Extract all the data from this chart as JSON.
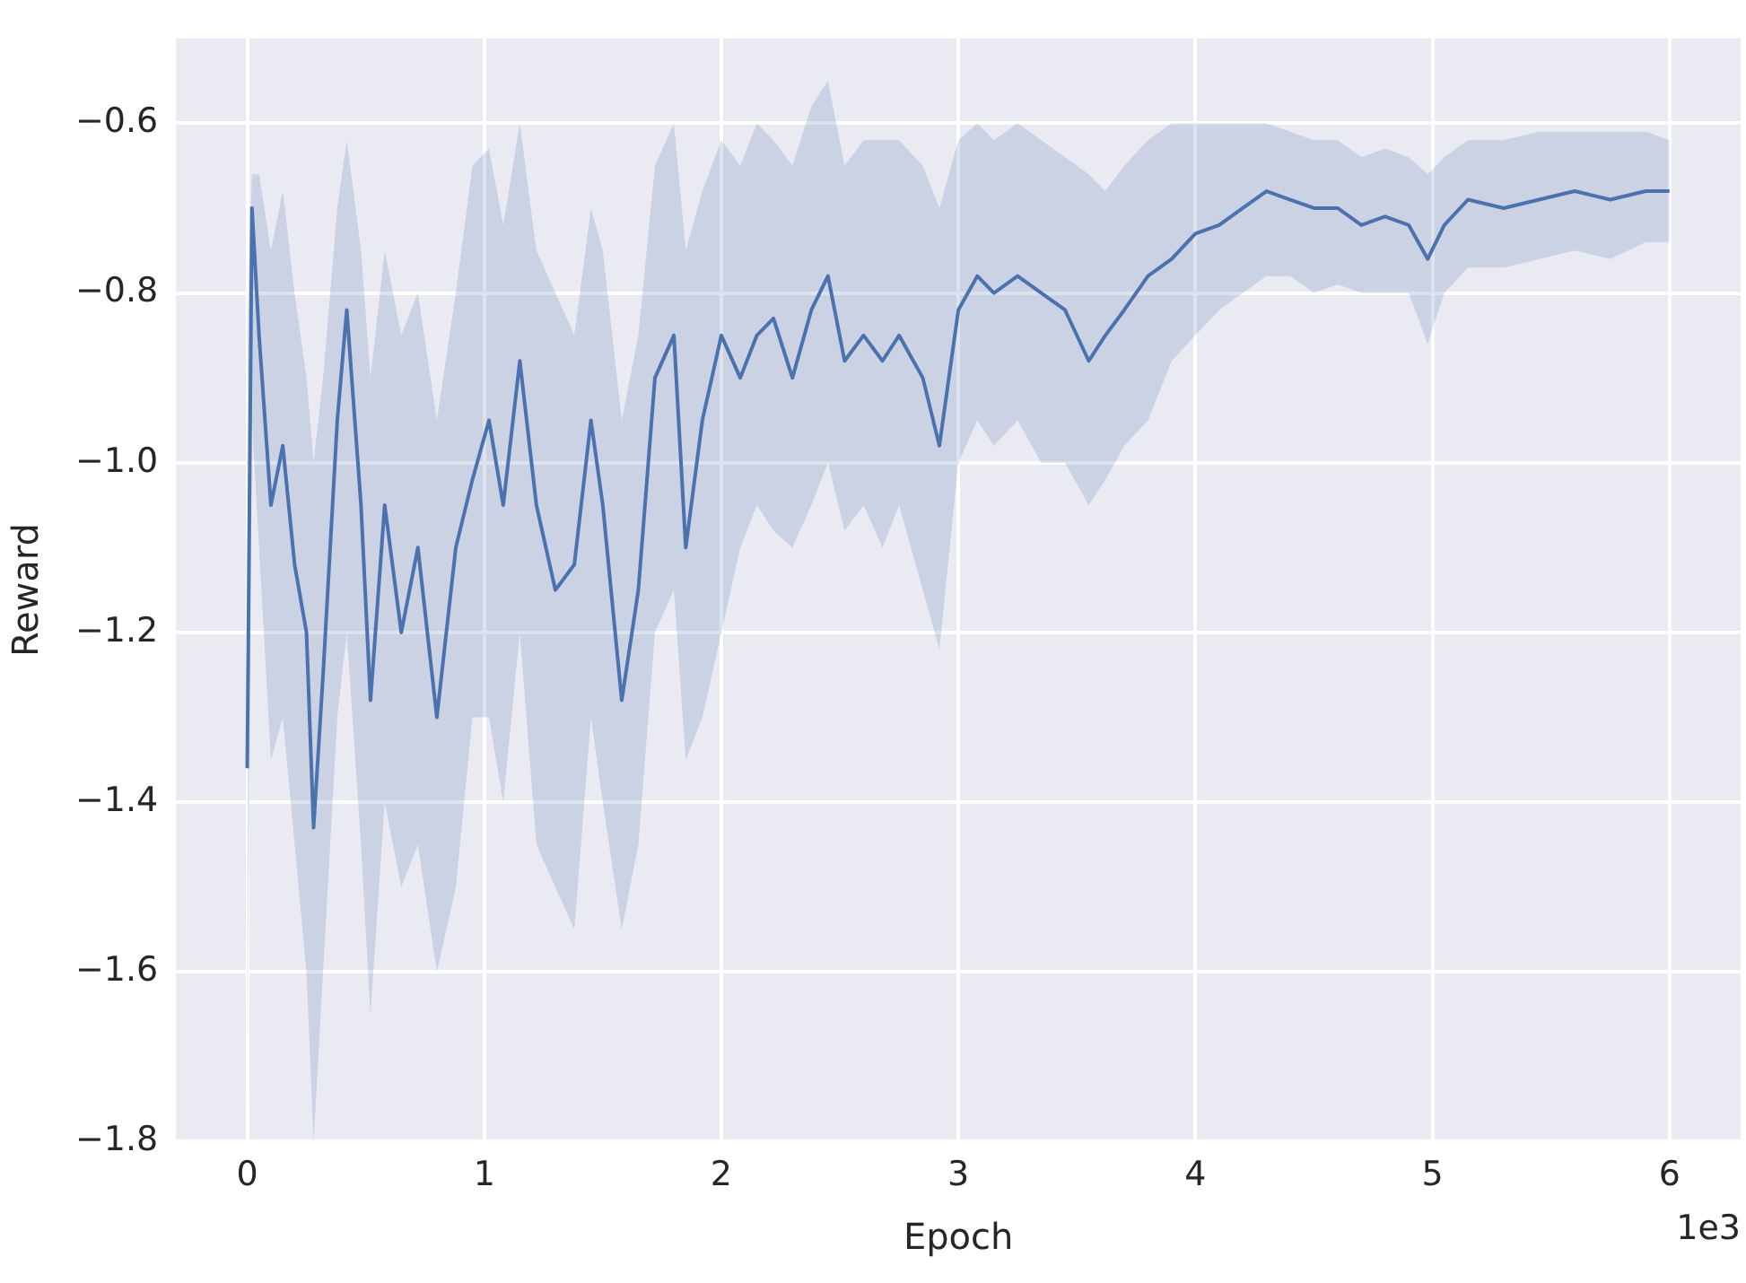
{
  "chart_data": {
    "type": "line",
    "xlabel": "Epoch",
    "ylabel": "Reward",
    "annotations": [
      "1e3"
    ],
    "grid": true,
    "legend": false,
    "marker": "none",
    "line_style": "solid",
    "xlim": [
      -0.3,
      6.3
    ],
    "xticks": [
      0,
      1,
      2,
      3,
      4,
      5,
      6
    ],
    "ylim": [
      -1.8,
      -0.5
    ],
    "yticks": [
      {
        "value": -1.8,
        "label": "−1.8"
      },
      {
        "value": -1.6,
        "label": "−1.6"
      },
      {
        "value": -1.4,
        "label": "−1.4"
      },
      {
        "value": -1.2,
        "label": "−1.2"
      },
      {
        "value": -1.0,
        "label": "−1.0"
      },
      {
        "value": -0.8,
        "label": "−0.8"
      },
      {
        "value": -0.6,
        "label": "−0.6"
      }
    ],
    "x": [
      0,
      0.02,
      0.05,
      0.1,
      0.15,
      0.2,
      0.25,
      0.28,
      0.32,
      0.38,
      0.42,
      0.48,
      0.52,
      0.58,
      0.65,
      0.72,
      0.8,
      0.88,
      0.95,
      1.02,
      1.08,
      1.15,
      1.22,
      1.3,
      1.38,
      1.45,
      1.5,
      1.58,
      1.65,
      1.72,
      1.8,
      1.85,
      1.92,
      2.0,
      2.08,
      2.15,
      2.22,
      2.3,
      2.38,
      2.45,
      2.52,
      2.6,
      2.68,
      2.75,
      2.85,
      2.92,
      3.0,
      3.08,
      3.15,
      3.25,
      3.35,
      3.45,
      3.55,
      3.62,
      3.7,
      3.8,
      3.9,
      4.0,
      4.1,
      4.2,
      4.3,
      4.4,
      4.5,
      4.6,
      4.7,
      4.8,
      4.9,
      4.98,
      5.05,
      5.15,
      5.3,
      5.45,
      5.6,
      5.75,
      5.9,
      6.0
    ],
    "series": [
      {
        "color": "#4c72b0",
        "values": [
          -1.36,
          -0.7,
          -0.85,
          -1.05,
          -0.98,
          -1.12,
          -1.2,
          -1.43,
          -1.25,
          -0.95,
          -0.82,
          -1.05,
          -1.28,
          -1.05,
          -1.2,
          -1.1,
          -1.3,
          -1.1,
          -1.02,
          -0.95,
          -1.05,
          -0.88,
          -1.05,
          -1.15,
          -1.12,
          -0.95,
          -1.05,
          -1.28,
          -1.15,
          -0.9,
          -0.85,
          -1.1,
          -0.95,
          -0.85,
          -0.9,
          -0.85,
          -0.83,
          -0.9,
          -0.82,
          -0.78,
          -0.88,
          -0.85,
          -0.88,
          -0.85,
          -0.9,
          -0.98,
          -0.82,
          -0.78,
          -0.8,
          -0.78,
          -0.8,
          -0.82,
          -0.88,
          -0.85,
          -0.82,
          -0.78,
          -0.76,
          -0.73,
          -0.72,
          -0.7,
          -0.68,
          -0.69,
          -0.7,
          -0.7,
          -0.72,
          -0.71,
          -0.72,
          -0.76,
          -0.72,
          -0.69,
          -0.7,
          -0.69,
          -0.68,
          -0.69,
          -0.68,
          -0.68
        ],
        "lower": [
          -1.76,
          -0.95,
          -1.1,
          -1.35,
          -1.3,
          -1.45,
          -1.6,
          -1.8,
          -1.6,
          -1.3,
          -1.2,
          -1.45,
          -1.65,
          -1.4,
          -1.5,
          -1.45,
          -1.6,
          -1.5,
          -1.3,
          -1.3,
          -1.4,
          -1.2,
          -1.45,
          -1.5,
          -1.55,
          -1.3,
          -1.4,
          -1.55,
          -1.45,
          -1.2,
          -1.15,
          -1.35,
          -1.3,
          -1.2,
          -1.1,
          -1.05,
          -1.08,
          -1.1,
          -1.05,
          -1.0,
          -1.08,
          -1.05,
          -1.1,
          -1.05,
          -1.15,
          -1.22,
          -1.0,
          -0.95,
          -0.98,
          -0.95,
          -1.0,
          -1.0,
          -1.05,
          -1.02,
          -0.98,
          -0.95,
          -0.88,
          -0.85,
          -0.82,
          -0.8,
          -0.78,
          -0.78,
          -0.8,
          -0.79,
          -0.8,
          -0.8,
          -0.8,
          -0.86,
          -0.8,
          -0.77,
          -0.77,
          -0.76,
          -0.75,
          -0.76,
          -0.74,
          -0.74
        ],
        "upper": [
          -0.84,
          -0.66,
          -0.66,
          -0.75,
          -0.68,
          -0.8,
          -0.9,
          -1.0,
          -0.9,
          -0.7,
          -0.62,
          -0.75,
          -0.9,
          -0.75,
          -0.85,
          -0.8,
          -0.95,
          -0.8,
          -0.65,
          -0.63,
          -0.72,
          -0.6,
          -0.75,
          -0.8,
          -0.85,
          -0.7,
          -0.75,
          -0.95,
          -0.85,
          -0.65,
          -0.6,
          -0.75,
          -0.68,
          -0.62,
          -0.65,
          -0.6,
          -0.62,
          -0.65,
          -0.58,
          -0.55,
          -0.65,
          -0.62,
          -0.62,
          -0.62,
          -0.65,
          -0.7,
          -0.62,
          -0.6,
          -0.62,
          -0.6,
          -0.62,
          -0.64,
          -0.66,
          -0.68,
          -0.65,
          -0.62,
          -0.6,
          -0.6,
          -0.6,
          -0.6,
          -0.6,
          -0.61,
          -0.62,
          -0.62,
          -0.64,
          -0.63,
          -0.64,
          -0.66,
          -0.64,
          -0.62,
          -0.62,
          -0.61,
          -0.61,
          -0.61,
          -0.61,
          -0.62
        ]
      }
    ]
  }
}
